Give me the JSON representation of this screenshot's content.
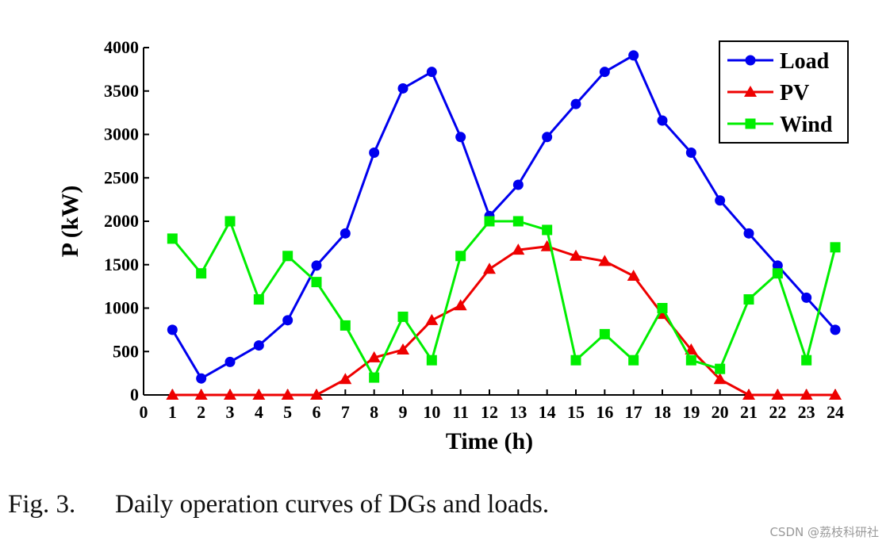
{
  "chart_data": {
    "type": "line",
    "title": "",
    "xlabel": "Time (h)",
    "ylabel": "P (kW)",
    "xlim": [
      0,
      24
    ],
    "ylim": [
      0,
      4000
    ],
    "x_ticks": [
      0,
      1,
      2,
      3,
      4,
      5,
      6,
      7,
      8,
      9,
      10,
      11,
      12,
      13,
      14,
      15,
      16,
      17,
      18,
      19,
      20,
      21,
      22,
      23,
      24
    ],
    "y_ticks": [
      0,
      500,
      1000,
      1500,
      2000,
      2500,
      3000,
      3500,
      4000
    ],
    "grid": false,
    "legend_position": "top-right",
    "x": [
      1,
      2,
      3,
      4,
      5,
      6,
      7,
      8,
      9,
      10,
      11,
      12,
      13,
      14,
      15,
      16,
      17,
      18,
      19,
      20,
      21,
      22,
      23,
      24
    ],
    "series": [
      {
        "name": "Load",
        "color": "#0000ee",
        "marker": "circle",
        "values": [
          750,
          190,
          380,
          570,
          860,
          1490,
          1860,
          2790,
          3530,
          3720,
          2970,
          2060,
          2420,
          2970,
          3350,
          3720,
          3910,
          3160,
          2790,
          2240,
          1860,
          1490,
          1120,
          750
        ]
      },
      {
        "name": "PV",
        "color": "#ee0000",
        "marker": "triangle",
        "values": [
          0,
          0,
          0,
          0,
          0,
          0,
          180,
          430,
          520,
          860,
          1030,
          1450,
          1670,
          1710,
          1600,
          1540,
          1370,
          930,
          520,
          180,
          0,
          0,
          0,
          0
        ]
      },
      {
        "name": "Wind",
        "color": "#00ee00",
        "marker": "square",
        "values": [
          1800,
          1400,
          2000,
          1100,
          1600,
          1300,
          800,
          200,
          900,
          400,
          1600,
          2000,
          2000,
          1900,
          400,
          700,
          400,
          1000,
          400,
          300,
          1100,
          1400,
          400,
          1700
        ]
      }
    ]
  },
  "caption": {
    "label": "Fig. 3.",
    "text": "Daily operation curves of DGs and loads."
  },
  "watermark": "CSDN @荔枝科研社"
}
